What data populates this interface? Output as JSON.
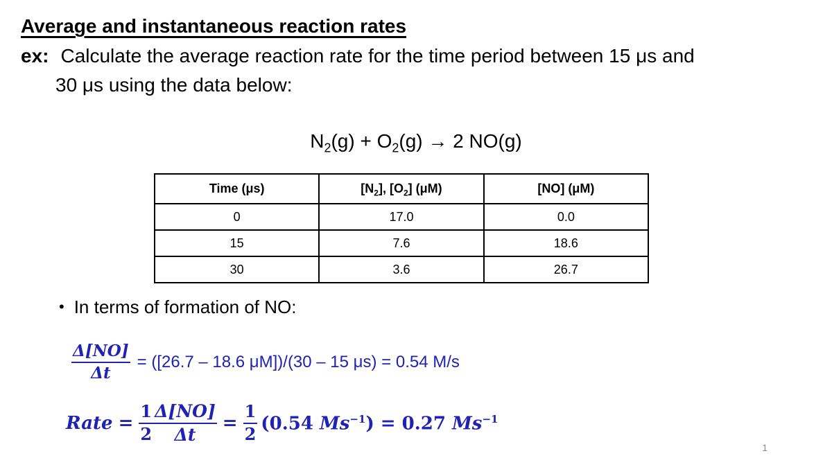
{
  "slide": {
    "title": "Average and instantaneous reaction rates",
    "ex": {
      "label": "ex:",
      "line1": "Calculate the average reaction rate for the time period between 15 μs and",
      "line2": "30 μs using the data below:"
    },
    "equation": {
      "n": "N",
      "n_sub": "2",
      "mid": "(g) + O",
      "o_sub": "2",
      "rest": "(g) → 2 NO(g)"
    },
    "table": {
      "headers": {
        "col1": "Time (μs)",
        "col2": {
          "a": "[N",
          "a_sub": "2",
          "b": "], [O",
          "b_sub": "2",
          "c": "] (μM)"
        },
        "col3": "[NO] (μM)"
      },
      "rows": [
        [
          "0",
          "17.0",
          "0.0"
        ],
        [
          "15",
          "7.6",
          "18.6"
        ],
        [
          "30",
          "3.6",
          "26.7"
        ]
      ]
    },
    "bullet": {
      "char": "•",
      "text": "In terms of formation of NO:"
    },
    "formula1": {
      "frac_num": "Δ[NO]",
      "frac_den": "Δt",
      "body": "= ([26.7 – 18.6 μM])/(30 – 15 μs) = 0.54 M/s"
    },
    "formula2": {
      "rate": "Rate",
      "eq1": "=",
      "half1_num": "1",
      "half1_den": "2",
      "frac_num": "Δ[NO]",
      "frac_den": "Δt",
      "eq2": "=",
      "half2_num": "1",
      "half2_den": "2",
      "t1": "(0.54",
      "ms1": "Ms",
      "sup1": "−1",
      "t2": ") = 0.27",
      "ms2": "Ms",
      "sup2": "−1"
    },
    "page_number": "1"
  },
  "colors": {
    "accent_blue": "#1f22b2",
    "text": "#000000",
    "page_number_gray": "#8a8a8a"
  }
}
